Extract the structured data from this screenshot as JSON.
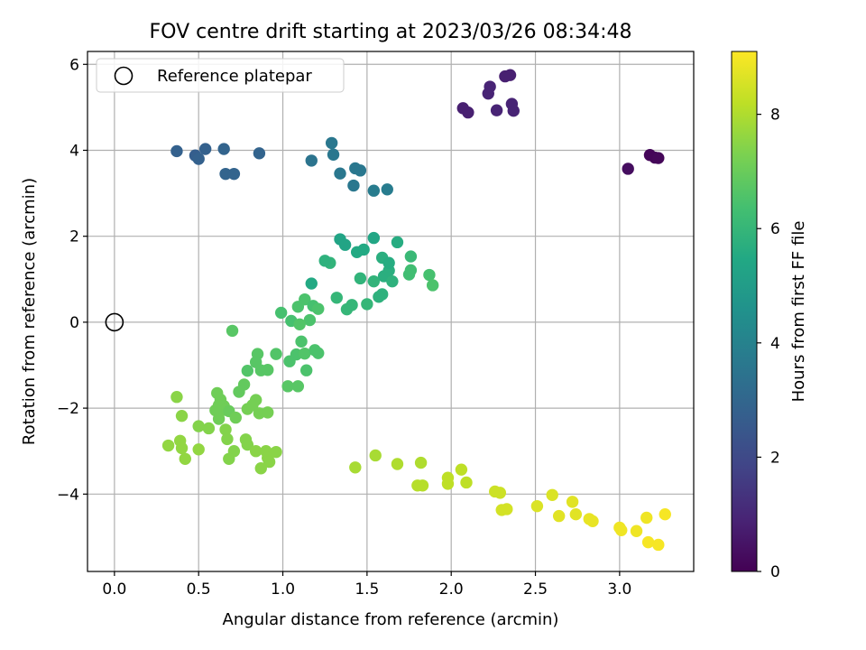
{
  "chart_data": {
    "type": "scatter",
    "title": "FOV centre drift starting at 2023/03/26 08:34:48",
    "xlabel": "Angular distance from reference (arcmin)",
    "ylabel": "Rotation from reference (arcmin)",
    "xlim": [
      -0.16,
      3.44
    ],
    "ylim": [
      -5.8,
      6.3
    ],
    "xticks": [
      0.0,
      0.5,
      1.0,
      1.5,
      2.0,
      2.5,
      3.0
    ],
    "xtick_labels": [
      "0.0",
      "0.5",
      "1.0",
      "1.5",
      "2.0",
      "2.5",
      "3.0"
    ],
    "yticks": [
      -4,
      -2,
      0,
      2,
      4,
      6
    ],
    "ytick_labels": [
      "−4",
      "−2",
      "0",
      "2",
      "4",
      "6"
    ],
    "grid": true,
    "legend": {
      "placement": "top-left",
      "entries": [
        "Reference platepar"
      ]
    },
    "colorbar": {
      "label": "Hours from first FF file",
      "min": 0,
      "max": 9.1,
      "ticks": [
        0,
        2,
        4,
        6,
        8
      ],
      "tick_labels": [
        "0",
        "2",
        "4",
        "6",
        "8"
      ],
      "colormap": "viridis"
    },
    "reference_point": {
      "x": 0.0,
      "y": 0.0
    },
    "points": [
      [
        3.05,
        3.57,
        0.3
      ],
      [
        3.18,
        3.89,
        0.1
      ],
      [
        3.21,
        3.83,
        0.1
      ],
      [
        3.23,
        3.82,
        0.15
      ],
      [
        2.07,
        4.98,
        0.8
      ],
      [
        2.1,
        4.88,
        0.8
      ],
      [
        2.22,
        5.32,
        0.9
      ],
      [
        2.23,
        5.48,
        0.9
      ],
      [
        2.27,
        4.93,
        0.9
      ],
      [
        2.32,
        5.72,
        0.8
      ],
      [
        2.35,
        5.75,
        0.8
      ],
      [
        2.36,
        5.08,
        0.9
      ],
      [
        2.37,
        4.92,
        0.9
      ],
      [
        0.37,
        3.98,
        2.8
      ],
      [
        0.48,
        3.88,
        2.7
      ],
      [
        0.5,
        3.8,
        2.8
      ],
      [
        0.54,
        4.03,
        2.8
      ],
      [
        0.65,
        4.03,
        2.9
      ],
      [
        0.66,
        3.45,
        2.9
      ],
      [
        0.71,
        3.45,
        2.9
      ],
      [
        0.86,
        3.93,
        2.9
      ],
      [
        1.17,
        3.76,
        3.5
      ],
      [
        1.29,
        4.17,
        3.6
      ],
      [
        1.3,
        3.9,
        3.6
      ],
      [
        1.34,
        3.46,
        3.6
      ],
      [
        1.42,
        3.18,
        3.6
      ],
      [
        1.43,
        3.58,
        3.6
      ],
      [
        1.46,
        3.53,
        3.6
      ],
      [
        1.54,
        3.06,
        3.8
      ],
      [
        1.62,
        3.09,
        3.8
      ],
      [
        1.17,
        0.9,
        5.5
      ],
      [
        1.34,
        1.93,
        5.3
      ],
      [
        1.37,
        1.8,
        5.3
      ],
      [
        1.44,
        1.63,
        5.5
      ],
      [
        1.48,
        1.69,
        5.5
      ],
      [
        1.54,
        1.96,
        5.4
      ],
      [
        1.59,
        1.5,
        5.7
      ],
      [
        1.6,
        1.07,
        5.7
      ],
      [
        1.63,
        1.2,
        5.7
      ],
      [
        1.63,
        1.38,
        5.6
      ],
      [
        1.65,
        0.95,
        5.8
      ],
      [
        1.59,
        0.65,
        5.8
      ],
      [
        1.57,
        0.59,
        5.8
      ],
      [
        1.54,
        0.95,
        5.9
      ],
      [
        1.5,
        0.42,
        6.0
      ],
      [
        1.46,
        1.02,
        5.9
      ],
      [
        1.41,
        0.4,
        6.0
      ],
      [
        1.38,
        0.3,
        6.0
      ],
      [
        1.32,
        0.57,
        6.0
      ],
      [
        1.28,
        1.38,
        5.9
      ],
      [
        1.25,
        1.43,
        5.8
      ],
      [
        1.68,
        1.86,
        5.6
      ],
      [
        1.75,
        1.11,
        6.3
      ],
      [
        1.76,
        1.21,
        6.3
      ],
      [
        1.76,
        1.53,
        6.1
      ],
      [
        1.87,
        1.1,
        6.4
      ],
      [
        1.89,
        0.86,
        6.5
      ],
      [
        0.99,
        0.22,
        6.4
      ],
      [
        1.05,
        0.03,
        6.4
      ],
      [
        1.09,
        0.36,
        6.5
      ],
      [
        1.13,
        0.53,
        6.5
      ],
      [
        1.16,
        0.05,
        6.5
      ],
      [
        1.18,
        0.38,
        6.4
      ],
      [
        1.21,
        0.31,
        6.5
      ],
      [
        1.1,
        -0.05,
        6.6
      ],
      [
        0.7,
        -0.2,
        6.7
      ],
      [
        1.11,
        -0.45,
        6.5
      ],
      [
        1.08,
        -0.75,
        6.5
      ],
      [
        1.13,
        -0.73,
        6.6
      ],
      [
        1.19,
        -0.65,
        6.5
      ],
      [
        1.21,
        -0.72,
        6.5
      ],
      [
        1.14,
        -1.12,
        6.5
      ],
      [
        1.04,
        -0.91,
        6.5
      ],
      [
        0.96,
        -0.74,
        6.6
      ],
      [
        0.85,
        -0.74,
        6.7
      ],
      [
        0.84,
        -0.93,
        6.7
      ],
      [
        0.79,
        -1.13,
        6.6
      ],
      [
        0.91,
        -1.11,
        6.7
      ],
      [
        0.87,
        -1.12,
        6.7
      ],
      [
        1.03,
        -1.49,
        6.7
      ],
      [
        1.09,
        -1.49,
        6.7
      ],
      [
        0.77,
        -1.45,
        6.9
      ],
      [
        0.74,
        -1.62,
        6.9
      ],
      [
        0.61,
        -1.65,
        7.1
      ],
      [
        0.63,
        -1.8,
        7.1
      ],
      [
        0.62,
        -1.93,
        7.1
      ],
      [
        0.65,
        -1.95,
        7.1
      ],
      [
        0.66,
        -2.04,
        7.1
      ],
      [
        0.6,
        -2.05,
        7.1
      ],
      [
        0.62,
        -2.25,
        7.1
      ],
      [
        0.68,
        -2.07,
        7.0
      ],
      [
        0.72,
        -2.22,
        7.1
      ],
      [
        0.79,
        -2.02,
        7.2
      ],
      [
        0.84,
        -1.81,
        7.2
      ],
      [
        0.82,
        -1.93,
        7.2
      ],
      [
        0.86,
        -2.12,
        7.2
      ],
      [
        0.91,
        -2.1,
        7.2
      ],
      [
        0.37,
        -1.74,
        7.5
      ],
      [
        0.4,
        -2.18,
        7.5
      ],
      [
        0.5,
        -2.42,
        7.4
      ],
      [
        0.56,
        -2.47,
        7.4
      ],
      [
        0.66,
        -2.5,
        7.4
      ],
      [
        0.67,
        -2.72,
        7.4
      ],
      [
        0.78,
        -2.73,
        7.4
      ],
      [
        0.79,
        -2.85,
        7.4
      ],
      [
        0.71,
        -3.0,
        7.4
      ],
      [
        0.68,
        -3.18,
        7.4
      ],
      [
        0.84,
        -3.0,
        7.5
      ],
      [
        0.9,
        -3.0,
        7.5
      ],
      [
        0.96,
        -3.02,
        7.5
      ],
      [
        0.91,
        -3.16,
        7.5
      ],
      [
        0.92,
        -3.25,
        7.5
      ],
      [
        0.87,
        -3.4,
        7.5
      ],
      [
        0.32,
        -2.87,
        7.6
      ],
      [
        0.39,
        -2.76,
        7.6
      ],
      [
        0.4,
        -2.93,
        7.6
      ],
      [
        0.42,
        -3.18,
        7.6
      ],
      [
        0.5,
        -2.96,
        7.6
      ],
      [
        1.43,
        -3.38,
        7.9
      ],
      [
        1.55,
        -3.1,
        7.9
      ],
      [
        1.68,
        -3.3,
        8.0
      ],
      [
        1.8,
        -3.8,
        8.1
      ],
      [
        1.83,
        -3.8,
        8.1
      ],
      [
        1.82,
        -3.27,
        8.0
      ],
      [
        1.98,
        -3.62,
        8.2
      ],
      [
        1.98,
        -3.76,
        8.2
      ],
      [
        2.06,
        -3.43,
        8.2
      ],
      [
        2.09,
        -3.73,
        8.2
      ],
      [
        2.26,
        -3.94,
        8.4
      ],
      [
        2.29,
        -3.97,
        8.4
      ],
      [
        2.3,
        -4.37,
        8.5
      ],
      [
        2.33,
        -4.35,
        8.5
      ],
      [
        2.51,
        -4.28,
        8.6
      ],
      [
        2.6,
        -4.02,
        8.6
      ],
      [
        2.64,
        -4.51,
        8.7
      ],
      [
        2.72,
        -4.18,
        8.7
      ],
      [
        2.74,
        -4.47,
        8.7
      ],
      [
        2.82,
        -4.58,
        8.8
      ],
      [
        2.84,
        -4.63,
        8.8
      ],
      [
        3.0,
        -4.78,
        8.9
      ],
      [
        3.01,
        -4.84,
        8.9
      ],
      [
        3.1,
        -4.86,
        8.9
      ],
      [
        3.16,
        -4.55,
        8.9
      ],
      [
        3.17,
        -5.12,
        9.0
      ],
      [
        3.23,
        -5.18,
        9.0
      ],
      [
        3.27,
        -4.47,
        9.0
      ]
    ]
  }
}
